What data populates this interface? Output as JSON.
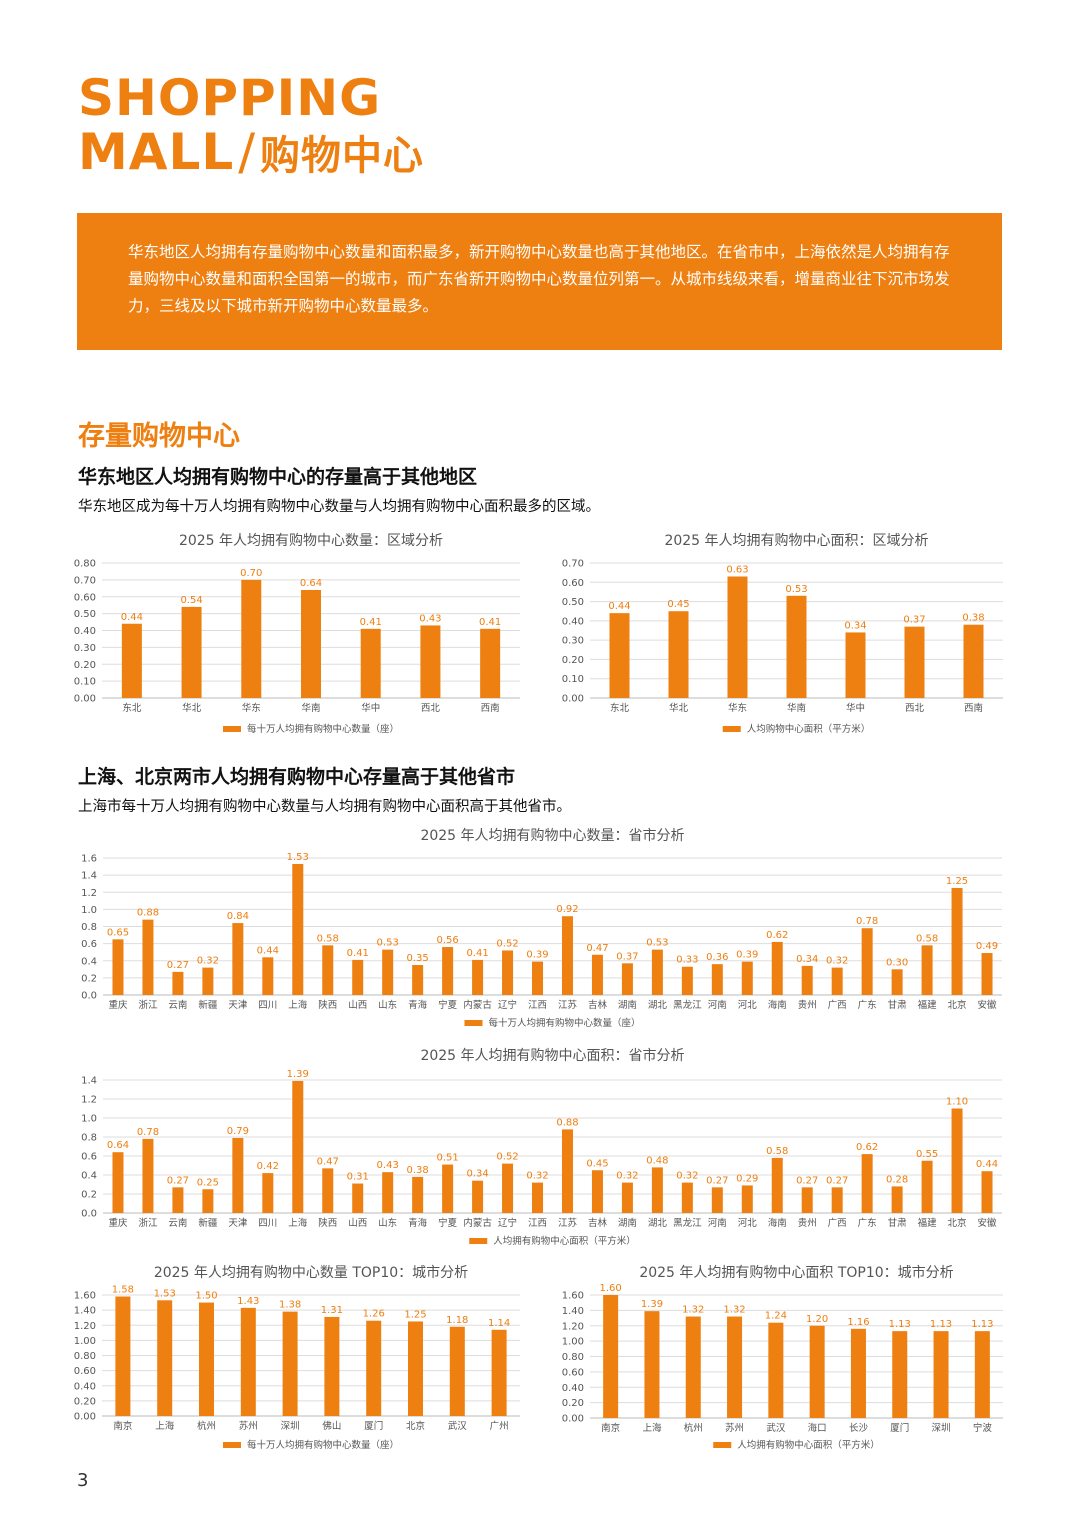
{
  "header": {
    "title_line1": "SHOPPING",
    "title_line2_en": "MALL",
    "title_sep": "/",
    "title_line2_cn": "购物中心"
  },
  "intro": {
    "text": "华东地区人均拥有存量购物中心数量和面积最多，新开购物中心数量也高于其他地区。在省市中，上海依然是人均拥有存量购物中心数量和面积全国第一的城市，而广东省新开购物中心数量位列第一。从城市线级来看，增量商业往下沉市场发力，三线及以下城市新开购物中心数量最多。"
  },
  "section": {
    "title": "存量购物中心",
    "sub1_title": "华东地区人均拥有购物中心的存量高于其他地区",
    "sub1_desc": "华东地区成为每十万人均拥有购物中心数量与人均拥有购物中心面积最多的区域。",
    "sub2_title": "上海、北京两市人均拥有购物中心存量高于其他省市",
    "sub2_desc": "上海市每十万人均拥有购物中心数量与人均拥有购物中心面积高于其他省市。"
  },
  "page_number": "3",
  "colors": {
    "accent": "#ee7f11",
    "grid": "#dddddd"
  },
  "chart_data": [
    {
      "id": "region_count",
      "type": "bar",
      "title": "2025 年人均拥有购物中心数量：区域分析",
      "categories": [
        "东北",
        "华北",
        "华东",
        "华南",
        "华中",
        "西北",
        "西南"
      ],
      "series": [
        {
          "name": "每十万人均拥有购物中心数量（座）",
          "values": [
            0.44,
            0.54,
            0.7,
            0.64,
            0.41,
            0.43,
            0.41
          ]
        }
      ],
      "yticks": [
        "0.00",
        "0.10",
        "0.20",
        "0.30",
        "0.40",
        "0.50",
        "0.60",
        "0.70",
        "0.80"
      ],
      "ylim": [
        0,
        0.8
      ],
      "decimals": 2,
      "legend": "bottom",
      "grid": true
    },
    {
      "id": "region_area",
      "type": "bar",
      "title": "2025 年人均拥有购物中心面积：区域分析",
      "categories": [
        "东北",
        "华北",
        "华东",
        "华南",
        "华中",
        "西北",
        "西南"
      ],
      "series": [
        {
          "name": "人均购物中心面积（平方米）",
          "values": [
            0.44,
            0.45,
            0.63,
            0.53,
            0.34,
            0.37,
            0.38
          ]
        }
      ],
      "yticks": [
        "0.00",
        "0.10",
        "0.20",
        "0.30",
        "0.40",
        "0.50",
        "0.60",
        "0.70"
      ],
      "ylim": [
        0,
        0.7
      ],
      "decimals": 2,
      "legend": "bottom",
      "grid": true
    },
    {
      "id": "province_count",
      "type": "bar",
      "title": "2025 年人均拥有购物中心数量：省市分析",
      "categories": [
        "重庆",
        "浙江",
        "云南",
        "新疆",
        "天津",
        "四川",
        "上海",
        "陕西",
        "山西",
        "山东",
        "青海",
        "宁夏",
        "内蒙古",
        "辽宁",
        "江西",
        "江苏",
        "吉林",
        "湖南",
        "湖北",
        "黑龙江",
        "河南",
        "河北",
        "海南",
        "贵州",
        "广西",
        "广东",
        "甘肃",
        "福建",
        "北京",
        "安徽"
      ],
      "series": [
        {
          "name": "每十万人均拥有购物中心数量（座）",
          "values": [
            0.65,
            0.88,
            0.27,
            0.32,
            0.84,
            0.44,
            1.53,
            0.58,
            0.41,
            0.53,
            0.35,
            0.56,
            0.41,
            0.52,
            0.39,
            0.92,
            0.47,
            0.37,
            0.53,
            0.33,
            0.36,
            0.39,
            0.62,
            0.34,
            0.32,
            0.78,
            0.3,
            0.58,
            1.25,
            0.49
          ]
        }
      ],
      "yticks": [
        "0.0",
        "0.2",
        "0.4",
        "0.6",
        "0.8",
        "1.0",
        "1.2",
        "1.4",
        "1.6"
      ],
      "ylim": [
        0,
        1.6
      ],
      "decimals": 2,
      "legend": "bottom",
      "grid": true
    },
    {
      "id": "province_area",
      "type": "bar",
      "title": "2025 年人均拥有购物中心面积：省市分析",
      "categories": [
        "重庆",
        "浙江",
        "云南",
        "新疆",
        "天津",
        "四川",
        "上海",
        "陕西",
        "山西",
        "山东",
        "青海",
        "宁夏",
        "内蒙古",
        "辽宁",
        "江西",
        "江苏",
        "吉林",
        "湖南",
        "湖北",
        "黑龙江",
        "河南",
        "河北",
        "海南",
        "贵州",
        "广西",
        "广东",
        "甘肃",
        "福建",
        "北京",
        "安徽"
      ],
      "series": [
        {
          "name": "人均拥有购物中心面积（平方米）",
          "values": [
            0.64,
            0.78,
            0.27,
            0.25,
            0.79,
            0.42,
            1.39,
            0.47,
            0.31,
            0.43,
            0.38,
            0.51,
            0.34,
            0.52,
            0.32,
            0.88,
            0.45,
            0.32,
            0.48,
            0.32,
            0.27,
            0.29,
            0.58,
            0.27,
            0.27,
            0.62,
            0.28,
            0.55,
            1.1,
            0.44
          ]
        }
      ],
      "yticks": [
        "0.0",
        "0.2",
        "0.4",
        "0.6",
        "0.8",
        "1.0",
        "1.2",
        "1.4"
      ],
      "ylim": [
        0,
        1.4
      ],
      "decimals": 2,
      "legend": "bottom",
      "grid": true
    },
    {
      "id": "city_count_top10",
      "type": "bar",
      "title": "2025 年人均拥有购物中心数量 TOP10：城市分析",
      "categories": [
        "南京",
        "上海",
        "杭州",
        "苏州",
        "深圳",
        "佛山",
        "厦门",
        "北京",
        "武汉",
        "广州"
      ],
      "series": [
        {
          "name": "每十万人均拥有购物中心数量（座）",
          "values": [
            1.58,
            1.53,
            1.5,
            1.43,
            1.38,
            1.31,
            1.26,
            1.25,
            1.18,
            1.14
          ]
        }
      ],
      "yticks": [
        "0.00",
        "0.20",
        "0.40",
        "0.60",
        "0.80",
        "1.00",
        "1.20",
        "1.40",
        "1.60"
      ],
      "ylim": [
        0,
        1.6
      ],
      "decimals": 2,
      "legend": "bottom",
      "grid": true
    },
    {
      "id": "city_area_top10",
      "type": "bar",
      "title": "2025 年人均拥有购物中心面积 TOP10：城市分析",
      "categories": [
        "南京",
        "上海",
        "杭州",
        "苏州",
        "武汉",
        "海口",
        "长沙",
        "厦门",
        "深圳",
        "宁波"
      ],
      "series": [
        {
          "name": "人均拥有购物中心面积（平方米）",
          "values": [
            1.6,
            1.39,
            1.32,
            1.32,
            1.24,
            1.2,
            1.16,
            1.13,
            1.13,
            1.13
          ]
        }
      ],
      "yticks": [
        "0.00",
        "0.20",
        "0.40",
        "0.60",
        "0.80",
        "1.00",
        "1.20",
        "1.40",
        "1.60"
      ],
      "ylim": [
        0,
        1.6
      ],
      "decimals": 2,
      "legend": "bottom",
      "grid": true
    }
  ]
}
